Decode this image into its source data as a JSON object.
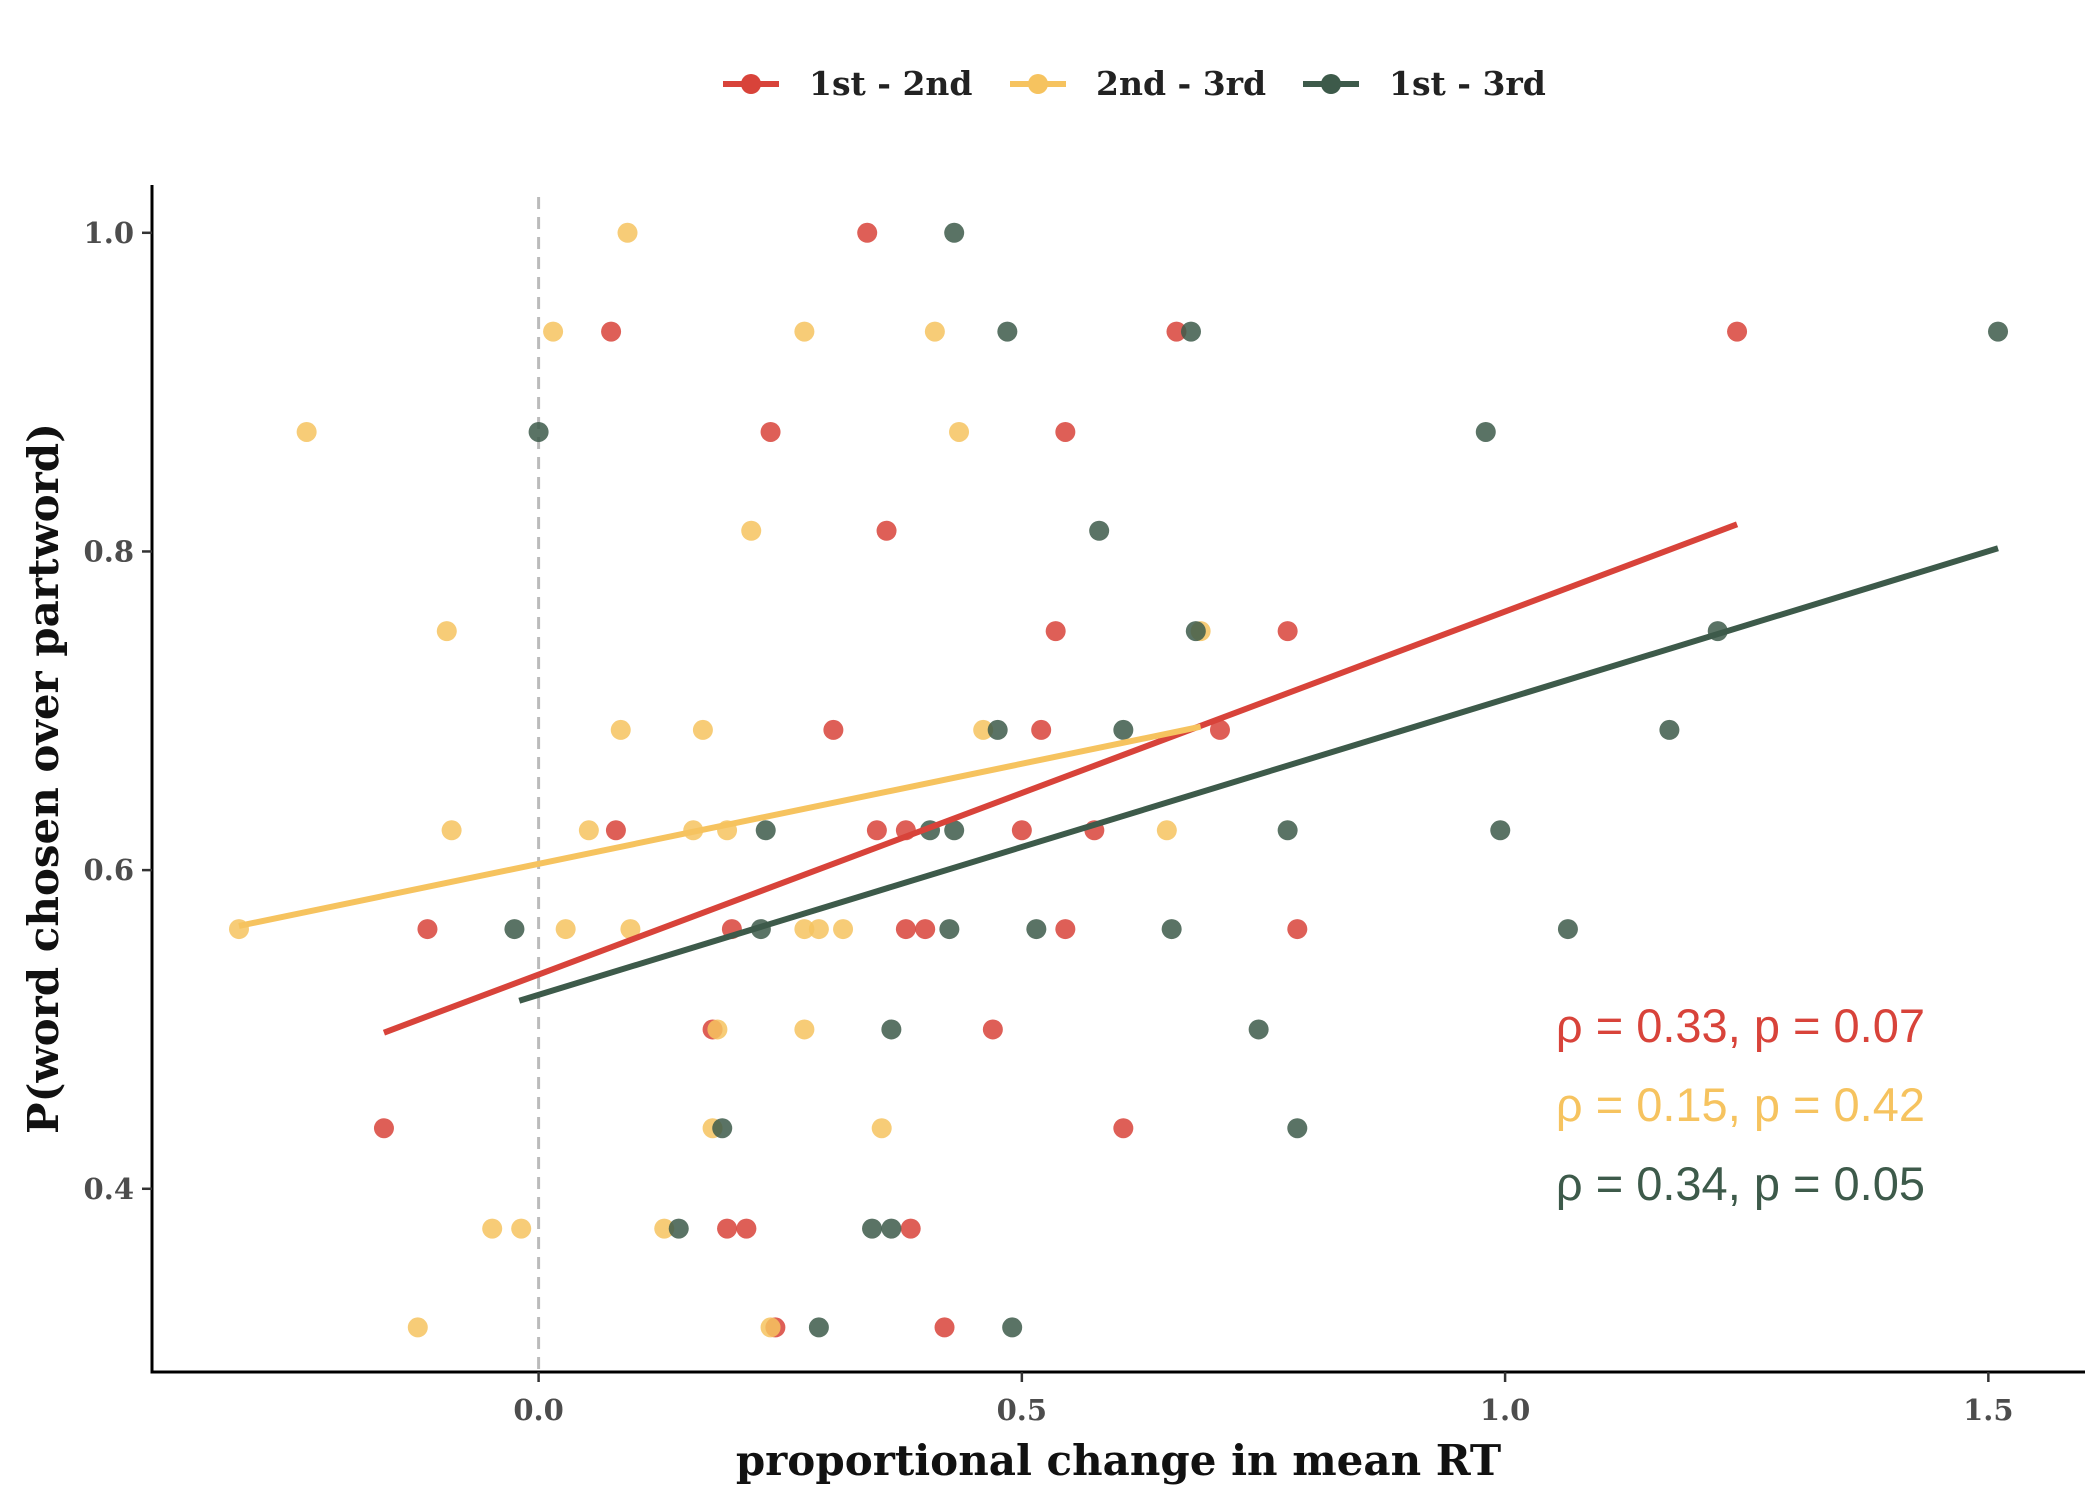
{
  "chart_data": {
    "type": "scatter",
    "xlabel": "proportional change in mean RT",
    "ylabel": "P(word chosen over partword)",
    "xlim": [
      -0.4,
      1.6
    ],
    "ylim": [
      0.285,
      1.03
    ],
    "x_ticks": [
      0.0,
      0.5,
      1.0,
      1.5
    ],
    "x_tick_labels": [
      "0.0",
      "0.5",
      "1.0",
      "1.5"
    ],
    "y_ticks": [
      0.4,
      0.6,
      0.8,
      1.0
    ],
    "y_tick_labels": [
      "0.4",
      "0.6",
      "0.8",
      "1.0"
    ],
    "reference_line": {
      "x": 0.0,
      "style": "dashed",
      "color": "#bbbbbb"
    },
    "grid": false,
    "legend_position": "top-center",
    "series": [
      {
        "name": "1st - 2nd",
        "color": "#d8433a",
        "points": [
          [
            0.34,
            1.0
          ],
          [
            0.075,
            0.938
          ],
          [
            0.66,
            0.938
          ],
          [
            1.24,
            0.938
          ],
          [
            0.24,
            0.875
          ],
          [
            0.545,
            0.875
          ],
          [
            0.36,
            0.813
          ],
          [
            0.535,
            0.75
          ],
          [
            0.775,
            0.75
          ],
          [
            0.305,
            0.688
          ],
          [
            0.52,
            0.688
          ],
          [
            0.705,
            0.688
          ],
          [
            0.08,
            0.625
          ],
          [
            0.35,
            0.625
          ],
          [
            0.38,
            0.625
          ],
          [
            0.5,
            0.625
          ],
          [
            0.575,
            0.625
          ],
          [
            -0.115,
            0.563
          ],
          [
            0.2,
            0.563
          ],
          [
            0.38,
            0.563
          ],
          [
            0.4,
            0.563
          ],
          [
            0.545,
            0.563
          ],
          [
            0.785,
            0.563
          ],
          [
            0.18,
            0.5
          ],
          [
            0.47,
            0.5
          ],
          [
            -0.16,
            0.438
          ],
          [
            0.605,
            0.438
          ],
          [
            0.195,
            0.375
          ],
          [
            0.215,
            0.375
          ],
          [
            0.385,
            0.375
          ],
          [
            0.245,
            0.313
          ],
          [
            0.42,
            0.313
          ]
        ],
        "fit": {
          "x": [
            -0.16,
            1.24
          ],
          "y": [
            0.498,
            0.817
          ]
        },
        "annotation": "ρ = 0.33, p = 0.07"
      },
      {
        "name": "2nd - 3rd",
        "color": "#f6c35f",
        "points": [
          [
            0.092,
            1.0
          ],
          [
            0.015,
            0.938
          ],
          [
            0.275,
            0.938
          ],
          [
            0.41,
            0.938
          ],
          [
            -0.24,
            0.875
          ],
          [
            0.435,
            0.875
          ],
          [
            0.22,
            0.813
          ],
          [
            -0.095,
            0.75
          ],
          [
            0.685,
            0.75
          ],
          [
            0.085,
            0.688
          ],
          [
            0.17,
            0.688
          ],
          [
            0.46,
            0.688
          ],
          [
            -0.09,
            0.625
          ],
          [
            0.052,
            0.625
          ],
          [
            0.16,
            0.625
          ],
          [
            0.195,
            0.625
          ],
          [
            0.65,
            0.625
          ],
          [
            -0.31,
            0.563
          ],
          [
            0.028,
            0.563
          ],
          [
            0.095,
            0.563
          ],
          [
            0.275,
            0.563
          ],
          [
            0.29,
            0.563
          ],
          [
            0.315,
            0.563
          ],
          [
            0.185,
            0.5
          ],
          [
            0.275,
            0.5
          ],
          [
            0.18,
            0.438
          ],
          [
            0.355,
            0.438
          ],
          [
            -0.048,
            0.375
          ],
          [
            -0.018,
            0.375
          ],
          [
            0.13,
            0.375
          ],
          [
            -0.125,
            0.313
          ],
          [
            0.24,
            0.313
          ]
        ],
        "fit": {
          "x": [
            -0.31,
            0.685
          ],
          "y": [
            0.565,
            0.69
          ]
        },
        "annotation": "ρ = 0.15, p = 0.42"
      },
      {
        "name": "1st - 3rd",
        "color": "#3d5a4a",
        "points": [
          [
            0.43,
            1.0
          ],
          [
            0.485,
            0.938
          ],
          [
            0.675,
            0.938
          ],
          [
            1.51,
            0.938
          ],
          [
            0.0,
            0.875
          ],
          [
            0.98,
            0.875
          ],
          [
            0.58,
            0.813
          ],
          [
            0.68,
            0.75
          ],
          [
            1.22,
            0.75
          ],
          [
            0.475,
            0.688
          ],
          [
            0.605,
            0.688
          ],
          [
            1.17,
            0.688
          ],
          [
            0.235,
            0.625
          ],
          [
            0.405,
            0.625
          ],
          [
            0.43,
            0.625
          ],
          [
            0.775,
            0.625
          ],
          [
            0.995,
            0.625
          ],
          [
            -0.025,
            0.563
          ],
          [
            0.23,
            0.563
          ],
          [
            0.425,
            0.563
          ],
          [
            0.515,
            0.563
          ],
          [
            0.655,
            0.563
          ],
          [
            1.065,
            0.563
          ],
          [
            0.365,
            0.5
          ],
          [
            0.745,
            0.5
          ],
          [
            0.19,
            0.438
          ],
          [
            0.785,
            0.438
          ],
          [
            0.145,
            0.375
          ],
          [
            0.345,
            0.375
          ],
          [
            0.365,
            0.375
          ],
          [
            0.29,
            0.313
          ],
          [
            0.49,
            0.313
          ]
        ],
        "fit": {
          "x": [
            -0.02,
            1.51
          ],
          "y": [
            0.518,
            0.802
          ]
        },
        "annotation": "ρ = 0.34, p = 0.05"
      }
    ]
  }
}
